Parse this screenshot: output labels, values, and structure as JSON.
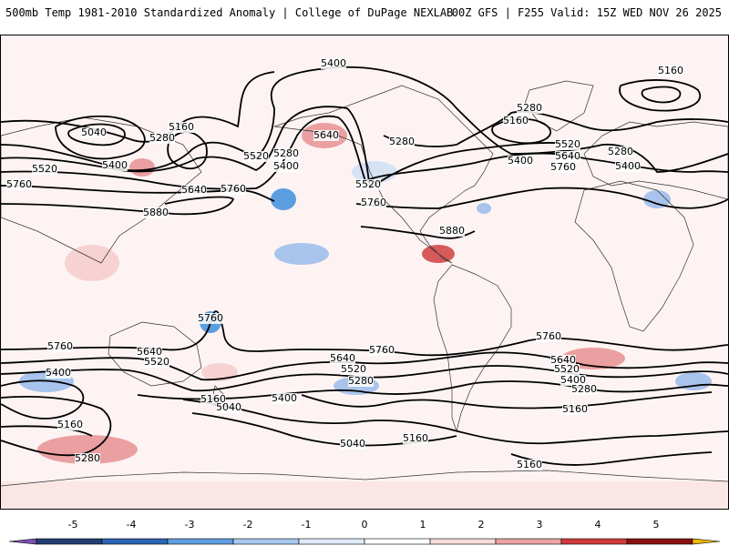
{
  "header": {
    "title_left": "500mb Temp 1981-2010 Standardized Anomaly | College of DuPage NEXLAB",
    "title_right": "00Z GFS | F255 Valid: 15Z WED NOV 26 2025"
  },
  "colors": {
    "ocean_base": "#fdf3f3",
    "warm_light": "#f7d2d2",
    "warm_mid": "#eaa0a0",
    "warm_strong": "#d65a5a",
    "cold_light": "#d6e3f5",
    "cold_mid": "#a8c4ec",
    "cold_strong": "#5b9ee0",
    "contour": "#000000"
  },
  "contour_labels": [
    {
      "text": "5400",
      "id": "lbl-5400-npac"
    },
    {
      "text": "5160",
      "id": "lbl-5160-greenland"
    },
    {
      "text": "5040",
      "id": "lbl-5040-siberia"
    },
    {
      "text": "5280",
      "id": "lbl-5280-siberia"
    },
    {
      "text": "5160",
      "id": "lbl-5160-siberia"
    },
    {
      "text": "5520",
      "id": "lbl-5520-asia"
    },
    {
      "text": "5400",
      "id": "lbl-5400-asia"
    },
    {
      "text": "5280",
      "id": "lbl-5280-alaska"
    },
    {
      "text": "5520",
      "id": "lbl-5520-alaska"
    },
    {
      "text": "5400",
      "id": "lbl-5400-alaska"
    },
    {
      "text": "5640",
      "id": "lbl-5640-alaska"
    },
    {
      "text": "5760",
      "id": "lbl-5760-wpac"
    },
    {
      "text": "5640",
      "id": "lbl-5640-pac"
    },
    {
      "text": "5760",
      "id": "lbl-5760-pac"
    },
    {
      "text": "5880",
      "id": "lbl-5880-pac"
    },
    {
      "text": "5280",
      "id": "lbl-5280-canada"
    },
    {
      "text": "5160",
      "id": "lbl-5160-canada"
    },
    {
      "text": "5280",
      "id": "lbl-5280-hudson"
    },
    {
      "text": "5520",
      "id": "lbl-5520-us"
    },
    {
      "text": "5760",
      "id": "lbl-5760-us"
    },
    {
      "text": "5880",
      "id": "lbl-5880-carib"
    },
    {
      "text": "5400",
      "id": "lbl-5400-atl"
    },
    {
      "text": "5520",
      "id": "lbl-5520-atl"
    },
    {
      "text": "5640",
      "id": "lbl-5640-atl"
    },
    {
      "text": "5760",
      "id": "lbl-5760-atl"
    },
    {
      "text": "5280",
      "id": "lbl-5280-eur"
    },
    {
      "text": "5400",
      "id": "lbl-5400-eur"
    },
    {
      "text": "5760",
      "id": "lbl-5760-aus"
    },
    {
      "text": "5760",
      "id": "lbl-5760-sio"
    },
    {
      "text": "5640",
      "id": "lbl-5640-aus"
    },
    {
      "text": "5520",
      "id": "lbl-5520-aus"
    },
    {
      "text": "5400",
      "id": "lbl-5400-sio"
    },
    {
      "text": "5160",
      "id": "lbl-5160-nz"
    },
    {
      "text": "5040",
      "id": "lbl-5040-nz"
    },
    {
      "text": "5400",
      "id": "lbl-5400-spac"
    },
    {
      "text": "5640",
      "id": "lbl-5640-spac"
    },
    {
      "text": "5520",
      "id": "lbl-5520-spac"
    },
    {
      "text": "5280",
      "id": "lbl-5280-spac"
    },
    {
      "text": "5760",
      "id": "lbl-5760-spac"
    },
    {
      "text": "5040",
      "id": "lbl-5040-spac"
    },
    {
      "text": "5160",
      "id": "lbl-5160-spac"
    },
    {
      "text": "5160",
      "id": "lbl-5160-ant"
    },
    {
      "text": "5280",
      "id": "lbl-5280-ant"
    },
    {
      "text": "5760",
      "id": "lbl-5760-satl"
    },
    {
      "text": "5640",
      "id": "lbl-5640-satl"
    },
    {
      "text": "5520",
      "id": "lbl-5520-satl"
    },
    {
      "text": "5400",
      "id": "lbl-5400-satl"
    },
    {
      "text": "5280",
      "id": "lbl-5280-satl"
    },
    {
      "text": "5160",
      "id": "lbl-5160-satl"
    },
    {
      "text": "5160",
      "id": "lbl-5160-satl2"
    }
  ],
  "colorbar": {
    "ticks": [
      "-5",
      "-4",
      "-3",
      "-2",
      "-1",
      "0",
      "1",
      "2",
      "3",
      "4",
      "5"
    ],
    "segments": [
      {
        "color": "#7b4fb5"
      },
      {
        "color": "#223d73"
      },
      {
        "color": "#2a64b4"
      },
      {
        "color": "#5f9edf"
      },
      {
        "color": "#a9c8ef"
      },
      {
        "color": "#e0ebf9"
      },
      {
        "color": "#ffffff"
      },
      {
        "color": "#f6dada"
      },
      {
        "color": "#e9a4a4"
      },
      {
        "color": "#cf3b3b"
      },
      {
        "color": "#8a1010"
      },
      {
        "color": "#f0b800"
      }
    ]
  }
}
